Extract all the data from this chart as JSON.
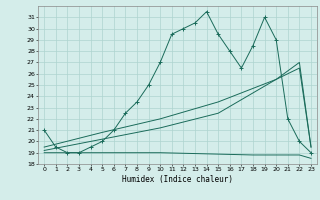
{
  "title": "",
  "xlabel": "Humidex (Indice chaleur)",
  "bg_color": "#d4edea",
  "grid_color": "#aed4cf",
  "line_color": "#1a6b5a",
  "xlim": [
    -0.5,
    23.5
  ],
  "ylim": [
    18,
    32
  ],
  "xticks": [
    0,
    1,
    2,
    3,
    4,
    5,
    6,
    7,
    8,
    9,
    10,
    11,
    12,
    13,
    14,
    15,
    16,
    17,
    18,
    19,
    20,
    21,
    22,
    23
  ],
  "yticks": [
    18,
    19,
    20,
    21,
    22,
    23,
    24,
    25,
    26,
    27,
    28,
    29,
    30,
    31
  ],
  "curve1_x": [
    0,
    1,
    2,
    3,
    4,
    5,
    6,
    7,
    8,
    9,
    10,
    11,
    12,
    13,
    14,
    15,
    16,
    17,
    18,
    19,
    20,
    21,
    22,
    23
  ],
  "curve1_y": [
    21,
    19.5,
    19,
    19,
    19.5,
    20,
    21,
    22.5,
    23.5,
    25,
    27,
    29.5,
    30,
    30.5,
    31.5,
    29.5,
    28,
    26.5,
    28.5,
    31,
    29,
    22,
    20,
    19
  ],
  "curve2_x": [
    0,
    4,
    10,
    18,
    22,
    23
  ],
  "curve2_y": [
    19,
    19,
    19,
    18.8,
    18.8,
    18.5
  ],
  "curve3_x": [
    0,
    5,
    10,
    15,
    20,
    22,
    23
  ],
  "curve3_y": [
    19.2,
    20.2,
    21.2,
    22.5,
    25.5,
    27.0,
    19.5
  ],
  "curve4_x": [
    0,
    5,
    10,
    15,
    20,
    22,
    23
  ],
  "curve4_y": [
    19.5,
    20.8,
    22.0,
    23.5,
    25.5,
    26.5,
    19.5
  ]
}
